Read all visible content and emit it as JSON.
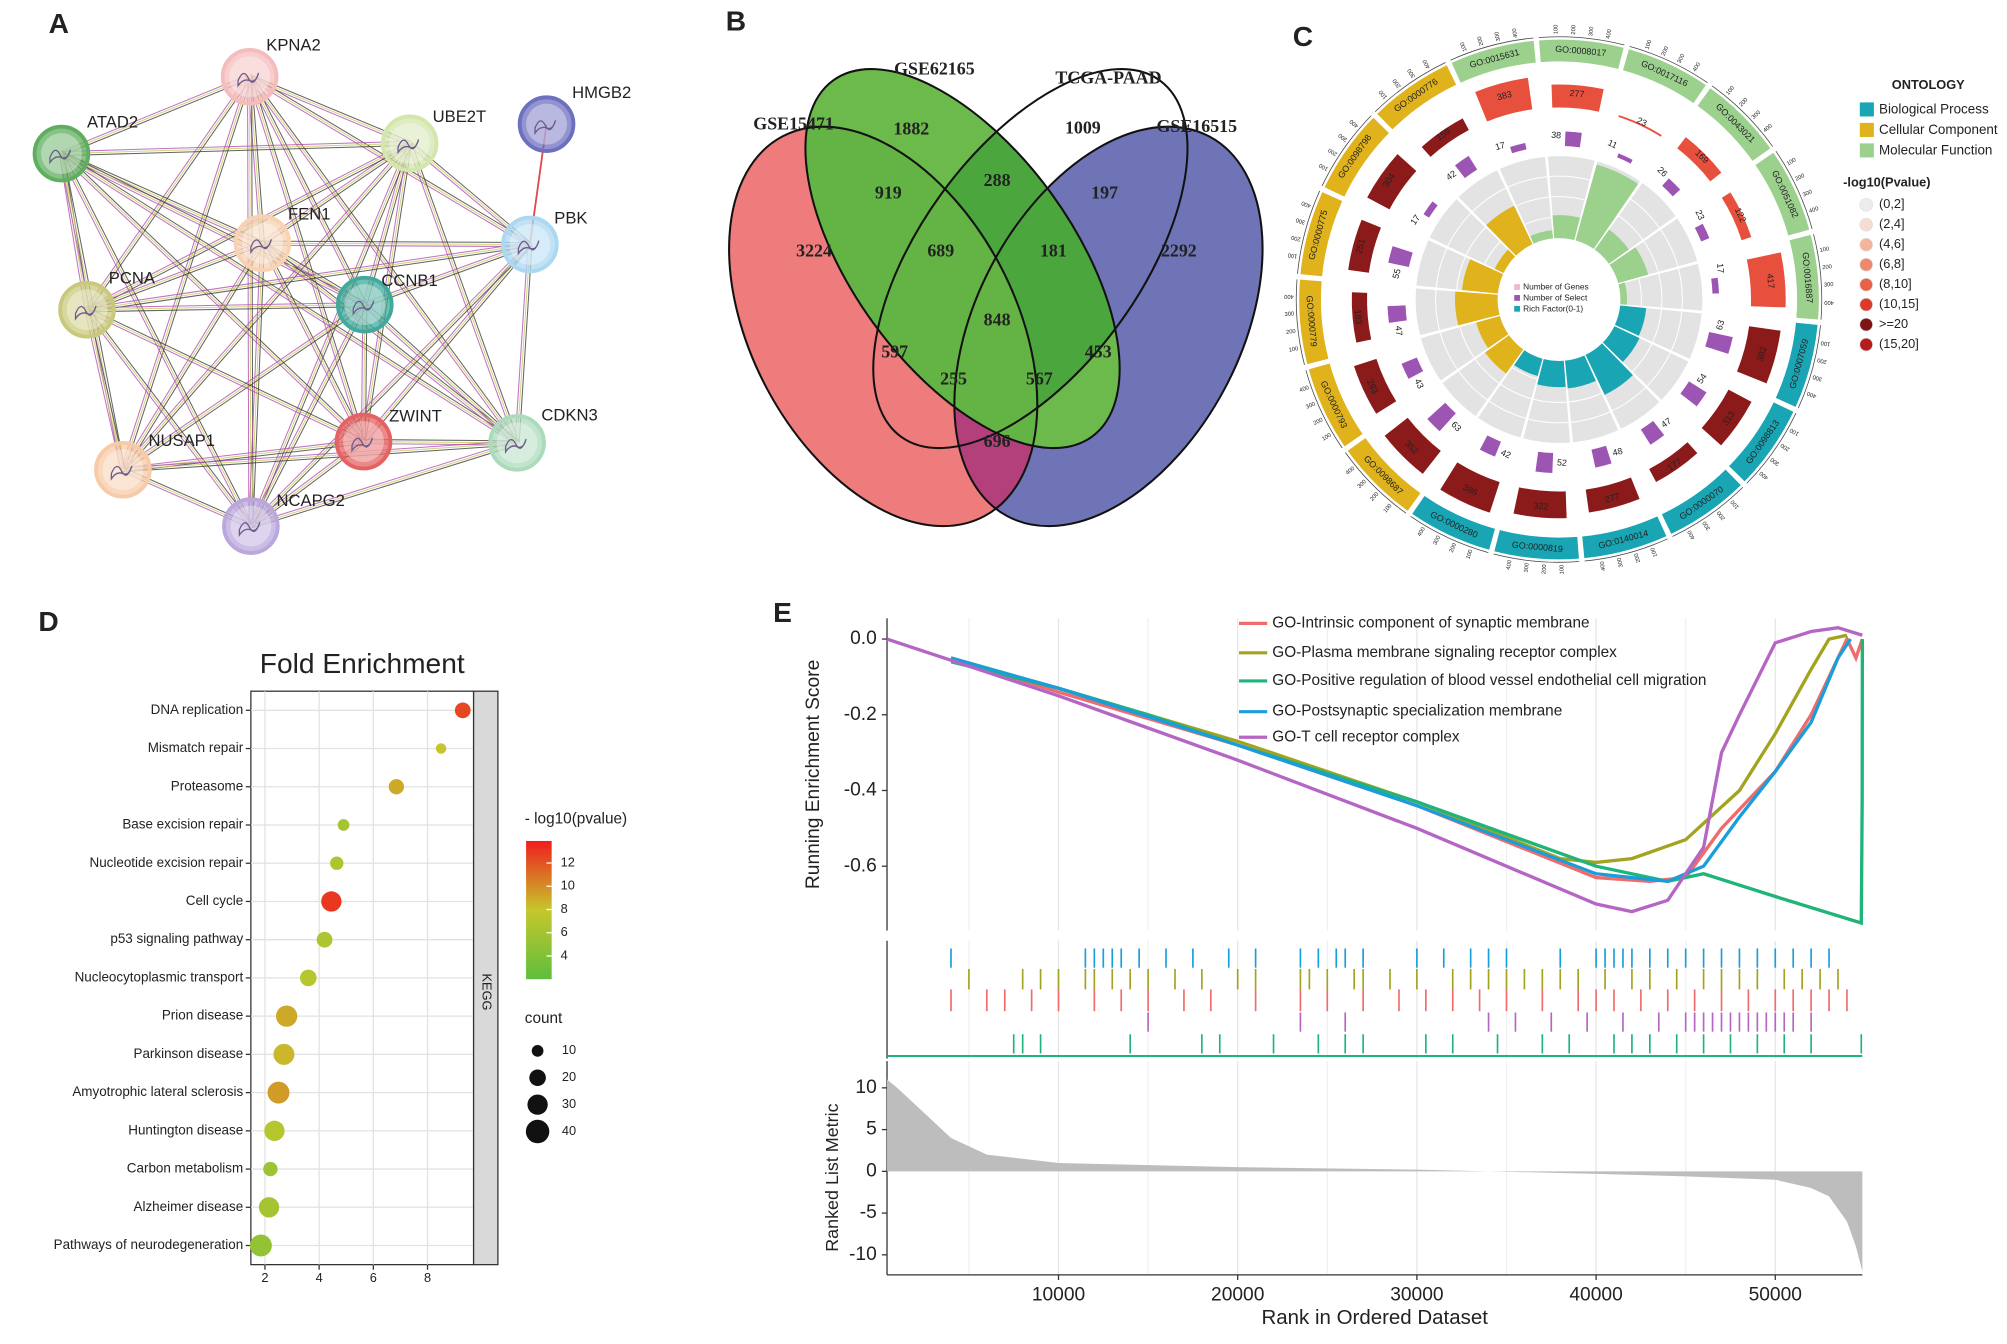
{
  "chart_data": [
    {
      "type": "network",
      "panel": "A",
      "nodes": [
        {
          "label": "KPNA2",
          "color": "#f5bcbc"
        },
        {
          "label": "UBE2T",
          "color": "#d3e6ac"
        },
        {
          "label": "HMGB2",
          "color": "#6d6fbf"
        },
        {
          "label": "ATAD2",
          "color": "#5fae5f"
        },
        {
          "label": "FEN1",
          "color": "#f7d3b3"
        },
        {
          "label": "PBK",
          "color": "#acd8f2"
        },
        {
          "label": "CCNB1",
          "color": "#3faa9b"
        },
        {
          "label": "PCNA",
          "color": "#c9c97d"
        },
        {
          "label": "ZWINT",
          "color": "#e56262"
        },
        {
          "label": "CDKN3",
          "color": "#acdbbc"
        },
        {
          "label": "NUSAP1",
          "color": "#f7cba8"
        },
        {
          "label": "NCAPG2",
          "color": "#b9a7de"
        }
      ],
      "edges": [
        [
          0,
          1
        ],
        [
          0,
          3
        ],
        [
          0,
          4
        ],
        [
          0,
          5
        ],
        [
          0,
          6
        ],
        [
          0,
          7
        ],
        [
          0,
          8
        ],
        [
          0,
          9
        ],
        [
          0,
          10
        ],
        [
          0,
          11
        ],
        [
          1,
          3
        ],
        [
          1,
          4
        ],
        [
          1,
          5
        ],
        [
          1,
          6
        ],
        [
          1,
          7
        ],
        [
          1,
          8
        ],
        [
          1,
          9
        ],
        [
          1,
          10
        ],
        [
          1,
          11
        ],
        [
          3,
          4
        ],
        [
          3,
          6
        ],
        [
          3,
          7
        ],
        [
          3,
          8
        ],
        [
          3,
          9
        ],
        [
          3,
          10
        ],
        [
          3,
          11
        ],
        [
          4,
          5
        ],
        [
          4,
          6
        ],
        [
          4,
          7
        ],
        [
          4,
          8
        ],
        [
          4,
          9
        ],
        [
          4,
          10
        ],
        [
          4,
          11
        ],
        [
          5,
          6
        ],
        [
          5,
          7
        ],
        [
          5,
          8
        ],
        [
          5,
          9
        ],
        [
          5,
          11
        ],
        [
          6,
          7
        ],
        [
          6,
          8
        ],
        [
          6,
          9
        ],
        [
          6,
          10
        ],
        [
          6,
          11
        ],
        [
          7,
          8
        ],
        [
          7,
          10
        ],
        [
          7,
          11
        ],
        [
          8,
          9
        ],
        [
          8,
          10
        ],
        [
          8,
          11
        ],
        [
          9,
          10
        ],
        [
          9,
          11
        ],
        [
          10,
          11
        ]
      ],
      "edge_colors": [
        "#3c3c3c",
        "#c6cd5c",
        "#b24db2"
      ],
      "single_edges": [
        [
          2,
          5
        ]
      ],
      "single_edge_color": "#e04848"
    },
    {
      "type": "venn",
      "panel": "B",
      "sets": [
        {
          "name": "GSE15471",
          "color": "#ef7c7c"
        },
        {
          "name": "GSE62165",
          "color": "#6bba4b"
        },
        {
          "name": "TCGA-PAAD",
          "color": "#ffffff"
        },
        {
          "name": "GSE16515",
          "color": "#6e74b6"
        }
      ],
      "regions": [
        3224,
        1882,
        1009,
        2292,
        919,
        288,
        197,
        689,
        181,
        848,
        597,
        453,
        255,
        567,
        696
      ]
    },
    {
      "type": "circos",
      "panel": "C",
      "ontology_title": "ONTOLOGY",
      "ontology": [
        {
          "name": "Biological Process",
          "color": "#19a5b3"
        },
        {
          "name": "Cellular Component",
          "color": "#e0b21b"
        },
        {
          "name": "Molecular Function",
          "color": "#9bd08d"
        }
      ],
      "pvalue_title": "-log10(Pvalue)",
      "pvalue_classes": [
        {
          "label": "(0,2]",
          "color": "#ececec"
        },
        {
          "label": "(2,4]",
          "color": "#f6ddd1"
        },
        {
          "label": "(4,6]",
          "color": "#f3b59b"
        },
        {
          "label": "(6,8]",
          "color": "#ee8a6b"
        },
        {
          "label": "(8,10]",
          "color": "#e86148"
        },
        {
          "label": "(10,15]",
          "color": "#dc3b2b"
        },
        {
          "label": ">=20",
          "color": "#7f1414"
        },
        {
          "label": "(15,20]",
          "color": "#b71c1c"
        }
      ],
      "center_legend": [
        {
          "label": "Number of Genes",
          "color": "#f3b5c8"
        },
        {
          "label": "Number of Select",
          "color": "#9d55b4"
        },
        {
          "label": "Rich Factor(0-1)",
          "color": "#19a5b3"
        }
      ],
      "select_color": "#9d55b4",
      "scale_ticks": [
        100,
        200,
        300,
        400
      ],
      "sectors": [
        {
          "id": "GO:0015631",
          "group": 2,
          "genes": 383,
          "select": 17,
          "rich": 0.05,
          "color": "#e8503e"
        },
        {
          "id": "GO:0008017",
          "group": 2,
          "genes": 277,
          "select": 38,
          "rich": 0.14,
          "color": "#e8503e"
        },
        {
          "id": "GO:0017116",
          "group": 2,
          "genes": 23,
          "select": 11,
          "rich": 0.48,
          "color": "#e8503e"
        },
        {
          "id": "GO:0043021",
          "group": 2,
          "genes": 169,
          "select": 26,
          "rich": 0.15,
          "color": "#e8503e"
        },
        {
          "id": "GO:0051082",
          "group": 2,
          "genes": 122,
          "select": 23,
          "rich": 0.19,
          "color": "#e8503e"
        },
        {
          "id": "GO:0016887",
          "group": 2,
          "genes": 417,
          "select": 17,
          "rich": 0.04,
          "color": "#e8503e"
        },
        {
          "id": "GO:0007059",
          "group": 0,
          "genes": 382,
          "select": 63,
          "rich": 0.16,
          "color": "#8b1a1a"
        },
        {
          "id": "GO:0098813",
          "group": 0,
          "genes": 313,
          "select": 54,
          "rich": 0.17,
          "color": "#8b1a1a"
        },
        {
          "id": "GO:0000070",
          "group": 0,
          "genes": 177,
          "select": 47,
          "rich": 0.27,
          "color": "#8b1a1a"
        },
        {
          "id": "GO:0140014",
          "group": 0,
          "genes": 277,
          "select": 48,
          "rich": 0.17,
          "color": "#8b1a1a"
        },
        {
          "id": "GO:0000819",
          "group": 0,
          "genes": 322,
          "select": 52,
          "rich": 0.16,
          "color": "#8b1a1a"
        },
        {
          "id": "GO:0000280",
          "group": 0,
          "genes": 386,
          "select": 42,
          "rich": 0.11,
          "color": "#8b1a1a"
        },
        {
          "id": "GO:0098687",
          "group": 1,
          "genes": 352,
          "select": 63,
          "rich": 0.18,
          "color": "#8b1a1a"
        },
        {
          "id": "GO:0000793",
          "group": 1,
          "genes": 283,
          "select": 43,
          "rich": 0.15,
          "color": "#8b1a1a"
        },
        {
          "id": "GO:0000779",
          "group": 1,
          "genes": 183,
          "select": 47,
          "rich": 0.26,
          "color": "#8b1a1a"
        },
        {
          "id": "GO:0000775",
          "group": 1,
          "genes": 251,
          "select": 55,
          "rich": 0.22,
          "color": "#8b1a1a"
        },
        {
          "id": "GO:0098798",
          "group": 1,
          "genes": 304,
          "select": 17,
          "rich": 0.06,
          "color": "#8b1a1a"
        },
        {
          "id": "GO:0000776",
          "group": 1,
          "genes": 159,
          "select": 42,
          "rich": 0.26,
          "color": "#8b1a1a"
        }
      ]
    },
    {
      "type": "dot",
      "panel": "D",
      "title": "Fold Enrichment",
      "facet": "KEGG",
      "categories": [
        "DNA replication",
        "Mismatch repair",
        "Proteasome",
        "Base excision repair",
        "Nucleotide excision repair",
        "Cell cycle",
        "p53 signaling pathway",
        "Nucleocytoplasmic transport",
        "Prion disease",
        "Parkinson disease",
        "Amyotrophic lateral sclerosis",
        "Huntington disease",
        "Carbon metabolism",
        "Alzheimer disease",
        "Pathways of neurodegeneration"
      ],
      "x": [
        9.3,
        8.5,
        6.85,
        4.9,
        4.65,
        4.45,
        4.2,
        3.6,
        2.8,
        2.7,
        2.5,
        2.35,
        2.2,
        2.15,
        1.85
      ],
      "count": [
        18,
        8,
        17,
        10,
        13,
        30,
        18,
        20,
        33,
        32,
        35,
        30,
        15,
        30,
        35
      ],
      "pvalue": [
        12.5,
        8,
        9,
        6,
        6.5,
        13,
        6.5,
        7,
        9,
        8.5,
        9.5,
        7,
        5.5,
        6,
        5
      ],
      "xlim": [
        1.48,
        9.7
      ],
      "xticks": [
        2,
        4,
        6,
        8
      ],
      "color_title": "- log10(pvalue)",
      "clim": [
        2,
        13.9
      ],
      "cticks": [
        4,
        6,
        8,
        10,
        12
      ],
      "colormap": [
        "#5ebe3d",
        "#c6c72c",
        "#f01e1e"
      ],
      "size_title": "count",
      "size_ticks": [
        10,
        20,
        30,
        40
      ]
    },
    {
      "type": "gsea",
      "panel": "E",
      "ylabel": "Running Enrichment Score",
      "metric_label": "Ranked List Metric",
      "xlabel": "Rank in Ordered Dataset",
      "xlim": [
        430,
        54860
      ],
      "xticks": [
        10000,
        20000,
        30000,
        40000,
        50000
      ],
      "xminor": [
        5000,
        15000,
        25000,
        35000,
        45000
      ],
      "ylim": [
        -0.77,
        0.055
      ],
      "yticks": [
        {
          "value": 0,
          "label": "0.0"
        },
        -0.2,
        -0.4,
        -0.6
      ],
      "metric_ylim": [
        -12.4,
        13.2
      ],
      "metric_yticks": [
        10,
        5,
        0,
        -5,
        -10
      ],
      "series": [
        {
          "name": "GO-Intrinsic component of synaptic membrane",
          "color": "#f06b6b",
          "x": [
            4000,
            10000,
            20000,
            30000,
            40000,
            43000,
            45000,
            47000,
            50000,
            52000,
            53500,
            54000,
            54500,
            54860
          ],
          "values": [
            -0.05,
            -0.14,
            -0.28,
            -0.44,
            -0.63,
            -0.64,
            -0.63,
            -0.5,
            -0.35,
            -0.2,
            -0.05,
            0.0,
            -0.05,
            0.0
          ],
          "hits": [
            4000,
            6000,
            7000,
            8500,
            10000,
            12000,
            13500,
            15000,
            17000,
            18500,
            21000,
            23500,
            25000,
            27000,
            29000,
            30500,
            32000,
            33500,
            35000,
            37000,
            39000,
            40000,
            41000,
            42500,
            44000,
            45500,
            47000,
            48500,
            50000,
            51000,
            52000,
            53000,
            54000
          ]
        },
        {
          "name": "GO-Plasma membrane signaling receptor complex",
          "color": "#a3a320",
          "x": [
            4000,
            10000,
            20000,
            30000,
            38000,
            40000,
            42000,
            45000,
            48000,
            50000,
            52000,
            53000,
            54000
          ],
          "values": [
            -0.05,
            -0.13,
            -0.27,
            -0.43,
            -0.58,
            -0.59,
            -0.58,
            -0.53,
            -0.4,
            -0.25,
            -0.08,
            0.0,
            0.01
          ],
          "hits": [
            5000,
            8000,
            9000,
            10000,
            11500,
            12000,
            13000,
            14000,
            15000,
            16500,
            18000,
            20000,
            21000,
            23500,
            24000,
            25000,
            26500,
            27000,
            28500,
            30000,
            32000,
            33000,
            34000,
            35000,
            36000,
            37000,
            38000,
            39000,
            40500,
            42000,
            43000,
            44500,
            46000,
            47000,
            48000,
            49000,
            50500,
            51500,
            52500,
            53500
          ]
        },
        {
          "name": "GO-Positive regulation of blood vessel endothelial cell migration",
          "color": "#1fb57a",
          "x": [
            4000,
            10000,
            15000,
            20000,
            30000,
            40000,
            44000,
            46000,
            50000,
            54800,
            54850,
            54860
          ],
          "values": [
            -0.06,
            -0.13,
            -0.2,
            -0.28,
            -0.43,
            -0.6,
            -0.64,
            -0.62,
            -0.68,
            -0.75,
            -0.42,
            0.0
          ],
          "hits": [
            7500,
            8000,
            9000,
            14000,
            18000,
            19000,
            22000,
            24500,
            26000,
            27000,
            30500,
            32000,
            34500,
            37000,
            38500,
            41000,
            42000,
            43000,
            44500,
            46000,
            47500,
            49000,
            50500,
            52000,
            54800
          ]
        },
        {
          "name": "GO-Postsynaptic specialization membrane",
          "color": "#1a9ddb",
          "x": [
            4000,
            10000,
            20000,
            30000,
            40000,
            44000,
            46000,
            48000,
            50000,
            52000,
            53500,
            54200
          ],
          "values": [
            -0.05,
            -0.13,
            -0.28,
            -0.44,
            -0.62,
            -0.64,
            -0.6,
            -0.47,
            -0.35,
            -0.22,
            -0.05,
            0.0
          ],
          "hits": [
            4000,
            11500,
            12000,
            12500,
            13000,
            13500,
            14500,
            16000,
            17500,
            19500,
            21000,
            23500,
            24500,
            25500,
            26000,
            27000,
            30000,
            31500,
            33000,
            34000,
            35000,
            38000,
            40000,
            40500,
            41000,
            41500,
            42000,
            43000,
            44000,
            45000,
            46000,
            47000,
            48000,
            49000,
            50000,
            51000,
            52000,
            53000
          ]
        },
        {
          "name": "GO-T cell receptor complex",
          "color": "#b565c4",
          "x": [
            430,
            10000,
            20000,
            30000,
            40000,
            42000,
            44000,
            46000,
            47000,
            48000,
            50000,
            52000,
            53500,
            54860
          ],
          "values": [
            0.0,
            -0.15,
            -0.32,
            -0.5,
            -0.7,
            -0.72,
            -0.69,
            -0.55,
            -0.3,
            -0.2,
            -0.01,
            0.02,
            0.03,
            0.01
          ],
          "hits": [
            15000,
            23500,
            26000,
            34000,
            35500,
            37500,
            39500,
            41500,
            43500,
            45000,
            45500,
            46000,
            46500,
            47000,
            47500,
            48000,
            48500,
            49000,
            49500,
            50000,
            50500,
            51000,
            52000
          ]
        }
      ],
      "metric_x": [
        430,
        1000,
        2000,
        3000,
        4000,
        6000,
        10000,
        20000,
        30000,
        40000,
        45000,
        50000,
        52000,
        53000,
        54000,
        54500,
        54860
      ],
      "metric": [
        11,
        10,
        8,
        6,
        4,
        2,
        1,
        0.5,
        0.2,
        -0.3,
        -0.6,
        -1,
        -2,
        -3,
        -6,
        -9,
        -12
      ]
    }
  ]
}
